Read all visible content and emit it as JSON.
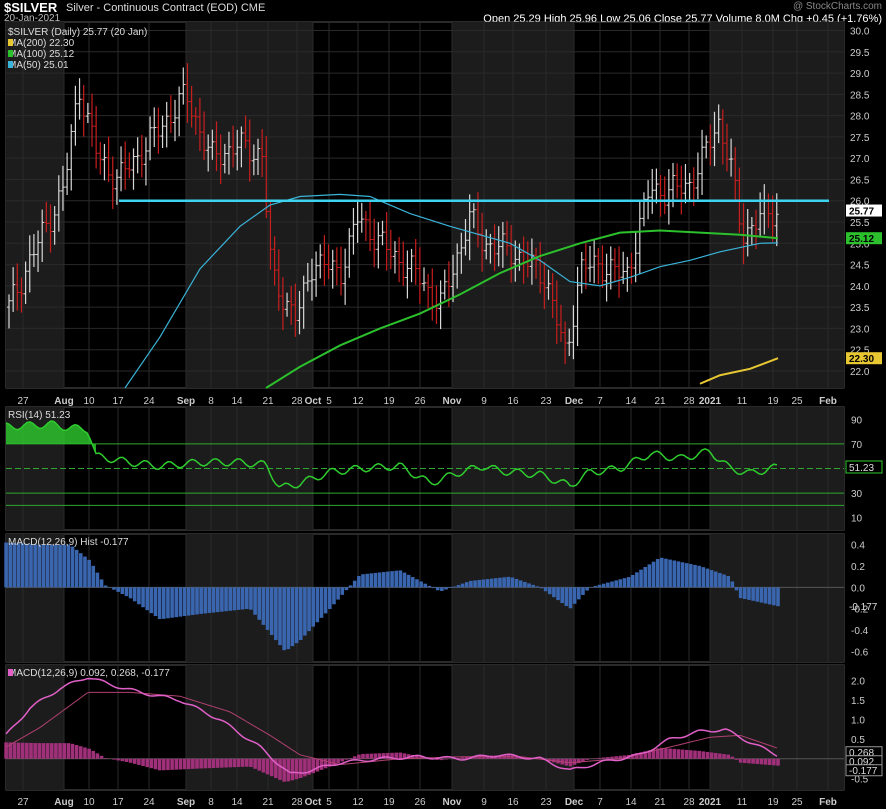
{
  "header": {
    "symbol": "$SILVER",
    "description": "Silver - Continuous Contract (EOD)  CME",
    "watermark": "@ StockCharts.com",
    "date": "20-Jan-2021",
    "quote_line": "Open 25.29   High 25.96   Low 25.06   Close 25.77   Volume 8.0M   Chg +0.45 (+1.76%)"
  },
  "colors": {
    "background": "#000000",
    "price_up": "#d8d8d8",
    "price_down": "#c81e1e",
    "ma200": "#e8c832",
    "ma100": "#2cc02c",
    "ma50": "#3ab4d8",
    "hline": "#3ed4f0",
    "rsi_line": "#2ecc2e",
    "macd_hist": "#3a66b0",
    "macd_line": "#e060c8",
    "signal_line": "#b04070"
  },
  "chart_data": [
    {
      "type": "candlestick",
      "title": "$SILVER (Daily) 25.77 (20 Jan)",
      "ylim": [
        21.6,
        30.2
      ],
      "yticks": [
        "30.0",
        "29.5",
        "29.0",
        "28.5",
        "28.0",
        "27.5",
        "27.0",
        "26.5",
        "26.0",
        "25.5",
        "25.0",
        "24.5",
        "24.0",
        "23.5",
        "23.0",
        "22.5",
        "22.0"
      ],
      "series": [
        {
          "name": "MA(200) 22.30",
          "last": 22.3
        },
        {
          "name": "MA(100) 25.12",
          "last": 25.12
        },
        {
          "name": "MA(50) 25.01",
          "last": 25.01
        }
      ],
      "horizontal_line": 26.0,
      "last_price_label": "25.77",
      "right_labels": [
        "25.77",
        "25.12",
        "22.30"
      ]
    },
    {
      "type": "line",
      "title": "RSI(14) 51.23",
      "ylim": [
        0,
        100
      ],
      "yticks": [
        "90",
        "70",
        "50",
        "30",
        "10"
      ],
      "levels": [
        70,
        50,
        30,
        20
      ],
      "last_label": "51.23"
    },
    {
      "type": "bar",
      "title": "MACD(12,26,9) Hist -0.177",
      "ylim": [
        -0.7,
        0.5
      ],
      "yticks": [
        "0.4",
        "0.2",
        "0.0",
        "-0.2",
        "-0.4",
        "-0.6"
      ],
      "last_label": "-0.177"
    },
    {
      "type": "line",
      "title": "MACD(12,26,9) 0.092, 0.268, -0.177",
      "ylim": [
        -0.8,
        2.4
      ],
      "yticks": [
        "2.0",
        "1.5",
        "1.0",
        "0.5",
        "0.0",
        "-0.5"
      ],
      "right_labels": [
        "0.268",
        "0.092",
        "-0.177"
      ]
    }
  ],
  "x_axis": {
    "labels": [
      "27",
      "Aug",
      "10",
      "17",
      "24",
      "Sep",
      "8",
      "14",
      "21",
      "28",
      "Oct",
      "5",
      "12",
      "19",
      "26",
      "Nov",
      "9",
      "16",
      "23",
      "Dec",
      "7",
      "14",
      "21",
      "28",
      "2021",
      "11",
      "19",
      "25",
      "Feb"
    ],
    "bold": [
      "Aug",
      "Sep",
      "Oct",
      "Nov",
      "Dec",
      "2021",
      "Feb"
    ]
  }
}
